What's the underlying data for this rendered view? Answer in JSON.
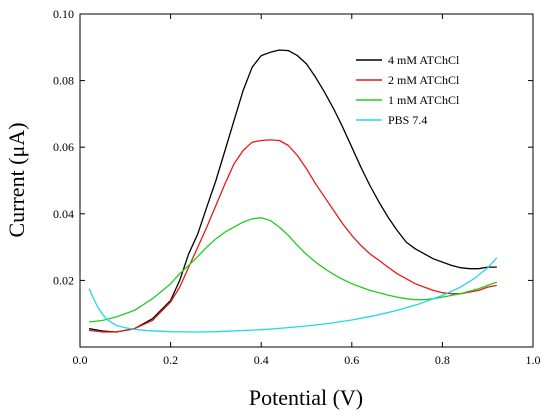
{
  "chart_data": {
    "type": "line",
    "xlabel": "Potential (V)",
    "ylabel": "Current (μA)",
    "xlim": [
      0.0,
      1.0
    ],
    "ylim": [
      0.0,
      0.1
    ],
    "xticks": [
      "0.0",
      "0.2",
      "0.4",
      "0.6",
      "0.8",
      "1.0"
    ],
    "yticks": [
      "0.02",
      "0.04",
      "0.06",
      "0.08",
      "0.10"
    ],
    "grid": false,
    "legend_position": "top-right",
    "series": [
      {
        "name": "4 mM ATChCl",
        "color": "#000000",
        "x": [
          0.02,
          0.05,
          0.08,
          0.12,
          0.16,
          0.2,
          0.22,
          0.24,
          0.26,
          0.28,
          0.3,
          0.32,
          0.34,
          0.36,
          0.38,
          0.4,
          0.42,
          0.44,
          0.46,
          0.48,
          0.5,
          0.52,
          0.54,
          0.56,
          0.58,
          0.6,
          0.62,
          0.64,
          0.66,
          0.68,
          0.7,
          0.72,
          0.74,
          0.76,
          0.78,
          0.8,
          0.82,
          0.84,
          0.86,
          0.88,
          0.9,
          0.92
        ],
        "y": [
          0.0055,
          0.0048,
          0.0045,
          0.0055,
          0.0085,
          0.014,
          0.02,
          0.028,
          0.034,
          0.042,
          0.05,
          0.059,
          0.068,
          0.077,
          0.084,
          0.0875,
          0.0885,
          0.0892,
          0.089,
          0.0875,
          0.085,
          0.081,
          0.0765,
          0.0715,
          0.066,
          0.06,
          0.054,
          0.0485,
          0.0435,
          0.039,
          0.035,
          0.0315,
          0.0295,
          0.028,
          0.0265,
          0.0255,
          0.0245,
          0.0238,
          0.0235,
          0.0235,
          0.024,
          0.024
        ]
      },
      {
        "name": "2 mM ATChCl",
        "color": "#e8191c",
        "x": [
          0.02,
          0.05,
          0.08,
          0.12,
          0.16,
          0.2,
          0.22,
          0.24,
          0.26,
          0.28,
          0.3,
          0.32,
          0.34,
          0.36,
          0.38,
          0.4,
          0.42,
          0.44,
          0.46,
          0.48,
          0.5,
          0.52,
          0.54,
          0.56,
          0.58,
          0.6,
          0.62,
          0.64,
          0.66,
          0.68,
          0.7,
          0.72,
          0.74,
          0.76,
          0.78,
          0.8,
          0.82,
          0.84,
          0.86,
          0.88,
          0.9,
          0.92
        ],
        "y": [
          0.005,
          0.0045,
          0.0045,
          0.0055,
          0.008,
          0.0135,
          0.018,
          0.024,
          0.03,
          0.036,
          0.0425,
          0.049,
          0.055,
          0.059,
          0.0615,
          0.062,
          0.0622,
          0.062,
          0.0605,
          0.0575,
          0.0535,
          0.049,
          0.045,
          0.041,
          0.037,
          0.0335,
          0.0305,
          0.028,
          0.026,
          0.024,
          0.022,
          0.0205,
          0.019,
          0.018,
          0.017,
          0.0163,
          0.016,
          0.016,
          0.0165,
          0.017,
          0.018,
          0.0185
        ]
      },
      {
        "name": "1 mM ATChCl",
        "color": "#22cc22",
        "x": [
          0.02,
          0.05,
          0.08,
          0.12,
          0.16,
          0.2,
          0.22,
          0.24,
          0.26,
          0.28,
          0.3,
          0.32,
          0.34,
          0.36,
          0.38,
          0.4,
          0.42,
          0.44,
          0.46,
          0.48,
          0.5,
          0.52,
          0.54,
          0.56,
          0.58,
          0.6,
          0.62,
          0.64,
          0.66,
          0.68,
          0.7,
          0.72,
          0.74,
          0.76,
          0.78,
          0.8,
          0.82,
          0.84,
          0.86,
          0.88,
          0.9,
          0.92
        ],
        "y": [
          0.0075,
          0.008,
          0.009,
          0.011,
          0.0145,
          0.019,
          0.022,
          0.0245,
          0.0272,
          0.03,
          0.0325,
          0.0345,
          0.036,
          0.0375,
          0.0385,
          0.0388,
          0.038,
          0.036,
          0.0335,
          0.0305,
          0.0278,
          0.0255,
          0.0235,
          0.0218,
          0.0203,
          0.019,
          0.018,
          0.017,
          0.0163,
          0.0156,
          0.015,
          0.0145,
          0.0142,
          0.0142,
          0.0145,
          0.015,
          0.0155,
          0.016,
          0.0168,
          0.0175,
          0.0185,
          0.0195
        ]
      },
      {
        "name": "PBS 7.4",
        "color": "#22d8f0",
        "x": [
          0.02,
          0.03,
          0.04,
          0.05,
          0.06,
          0.08,
          0.1,
          0.12,
          0.15,
          0.2,
          0.25,
          0.3,
          0.35,
          0.4,
          0.45,
          0.5,
          0.55,
          0.6,
          0.65,
          0.7,
          0.75,
          0.8,
          0.84,
          0.87,
          0.9,
          0.92
        ],
        "y": [
          0.0175,
          0.0145,
          0.0118,
          0.0098,
          0.0082,
          0.0065,
          0.0058,
          0.0053,
          0.0049,
          0.0046,
          0.0045,
          0.0046,
          0.0049,
          0.0052,
          0.0057,
          0.0063,
          0.0071,
          0.0081,
          0.0094,
          0.011,
          0.013,
          0.0155,
          0.018,
          0.0205,
          0.0238,
          0.0268
        ]
      }
    ]
  }
}
